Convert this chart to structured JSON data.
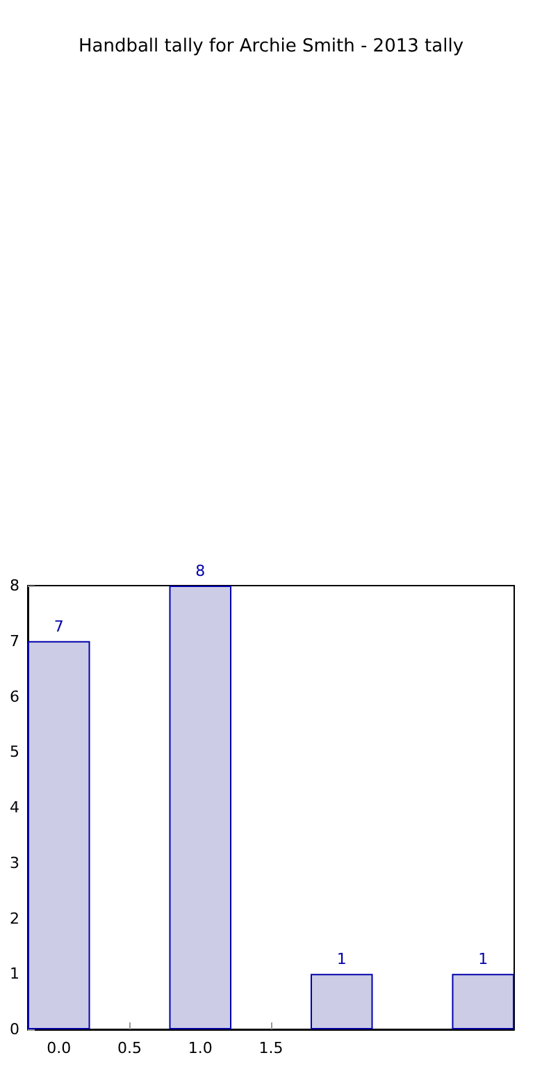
{
  "chart_data": {
    "type": "bar",
    "title": "Handball tally for Archie Smith - 2013 tally",
    "x": [
      0,
      1,
      2,
      3
    ],
    "values": [
      7,
      8,
      1,
      1
    ],
    "color": "#cccce6",
    "xlim": [
      -0.22,
      3.22
    ],
    "xticks": [
      {
        "value": 0,
        "label": "0.0"
      },
      {
        "value": 0.5,
        "label": "0.5"
      },
      {
        "value": 1,
        "label": "1.0"
      },
      {
        "value": 1.5,
        "label": "1.5"
      }
    ],
    "ylim": [
      0,
      8
    ],
    "yticks": [
      0,
      1,
      2,
      3,
      4,
      5,
      6,
      7,
      8
    ],
    "data_labels": true
  }
}
